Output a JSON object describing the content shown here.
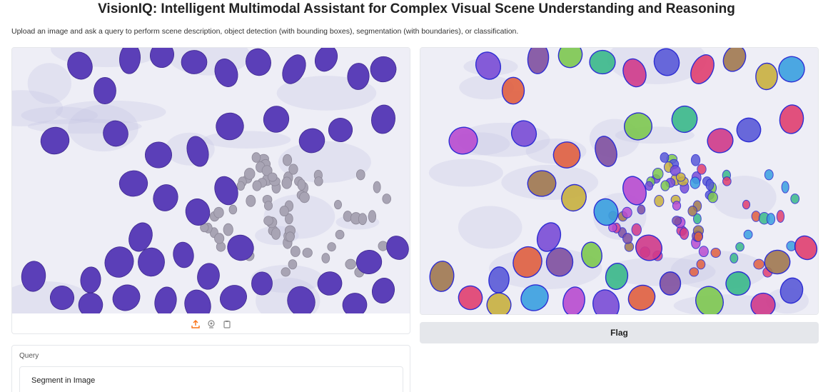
{
  "header": {
    "title": "VisionIQ: Intelligent Multimodal Assistant for Complex Visual Scene Understanding and Reasoning",
    "description": "Upload an image and ask a query to perform scene description, object detection (with bounding boxes), segmentation (with boundaries), or classification."
  },
  "input_image": {
    "toolbar_icons": [
      "upload-icon",
      "webcam-icon",
      "clipboard-icon"
    ]
  },
  "output_image": {},
  "flag_button": {
    "label": "Flag"
  },
  "query": {
    "label": "Query",
    "value": "Segment in Image"
  },
  "colors": {
    "accent": "#f97316",
    "button_bg": "#e5e7eb",
    "cell_purple": "#5b3fb8",
    "rbc_gray": "#a8a4b4"
  }
}
